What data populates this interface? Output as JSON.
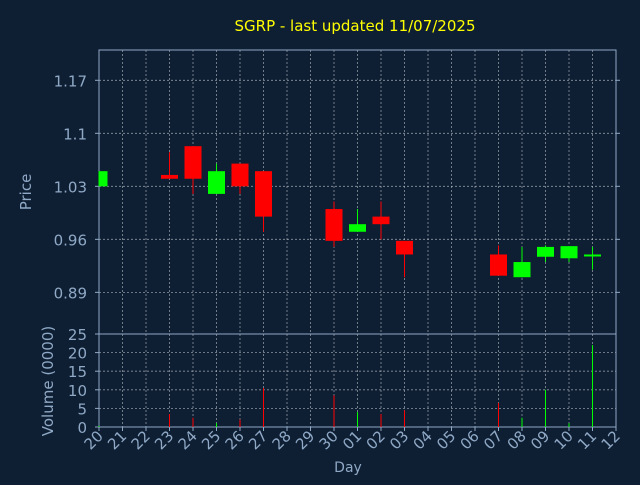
{
  "chart_data": {
    "type": "candlestick",
    "title": "SGRP - last updated 11/07/2025",
    "xlabel": "Day",
    "price_ylabel": "Price",
    "volume_ylabel": "Volume (0000)",
    "price_ylim": [
      0.835,
      1.21
    ],
    "price_ticks": [
      "1.17",
      "1.1",
      "1.03",
      "0.96",
      "0.89"
    ],
    "price_tick_values": [
      1.17,
      1.1,
      1.03,
      0.96,
      0.89
    ],
    "volume_ylim": [
      0,
      25
    ],
    "volume_ticks": [
      "25",
      "20",
      "15",
      "10",
      "5",
      "0"
    ],
    "volume_tick_values": [
      25,
      20,
      15,
      10,
      5,
      0
    ],
    "x_ticks": [
      "20",
      "21",
      "22",
      "23",
      "24",
      "25",
      "26",
      "27",
      "28",
      "29",
      "30",
      "01",
      "02",
      "03",
      "04",
      "05",
      "06",
      "07",
      "08",
      "09",
      "10",
      "11",
      "12"
    ],
    "grid": true,
    "colors": {
      "background": "#0f1f33",
      "text": "#8fa9c6",
      "title": "#ffff00",
      "up": "#00ff00",
      "down": "#ff0000",
      "grid": "#c0c8d0",
      "frame": "#8fa9c6"
    },
    "candles": [
      {
        "x": "20",
        "open": 1.03,
        "close": 1.05,
        "high": 1.05,
        "low": 1.03,
        "volume": 0.3
      },
      {
        "x": "23",
        "open": 1.045,
        "close": 1.04,
        "high": 1.075,
        "low": 1.04,
        "volume": 3.5
      },
      {
        "x": "24",
        "open": 1.083,
        "close": 1.04,
        "high": 1.083,
        "low": 1.02,
        "volume": 2.5
      },
      {
        "x": "25",
        "open": 1.02,
        "close": 1.05,
        "high": 1.06,
        "low": 1.02,
        "volume": 1.0
      },
      {
        "x": "26",
        "open": 1.06,
        "close": 1.03,
        "high": 1.06,
        "low": 1.02,
        "volume": 2.0
      },
      {
        "x": "27",
        "open": 1.05,
        "close": 0.99,
        "high": 1.05,
        "low": 0.97,
        "volume": 10.5
      },
      {
        "x": "30",
        "open": 1.0,
        "close": 0.958,
        "high": 1.01,
        "low": 0.95,
        "volume": 8.5
      },
      {
        "x": "01",
        "open": 0.97,
        "close": 0.98,
        "high": 1.0,
        "low": 0.97,
        "volume": 4.0
      },
      {
        "x": "02",
        "open": 0.99,
        "close": 0.98,
        "high": 1.01,
        "low": 0.96,
        "volume": 3.5
      },
      {
        "x": "03",
        "open": 0.958,
        "close": 0.94,
        "high": 0.958,
        "low": 0.91,
        "volume": 4.5
      },
      {
        "x": "07",
        "open": 0.94,
        "close": 0.912,
        "high": 0.952,
        "low": 0.912,
        "volume": 6.5
      },
      {
        "x": "08",
        "open": 0.91,
        "close": 0.93,
        "high": 0.95,
        "low": 0.91,
        "volume": 2.5
      },
      {
        "x": "09",
        "open": 0.937,
        "close": 0.95,
        "high": 0.952,
        "low": 0.93,
        "volume": 10.0
      },
      {
        "x": "10",
        "open": 0.935,
        "close": 0.951,
        "high": 0.951,
        "low": 0.93,
        "volume": 1.0
      },
      {
        "x": "11",
        "open": 0.94,
        "close": 0.94,
        "high": 0.95,
        "low": 0.92,
        "volume": 22.0
      }
    ]
  }
}
